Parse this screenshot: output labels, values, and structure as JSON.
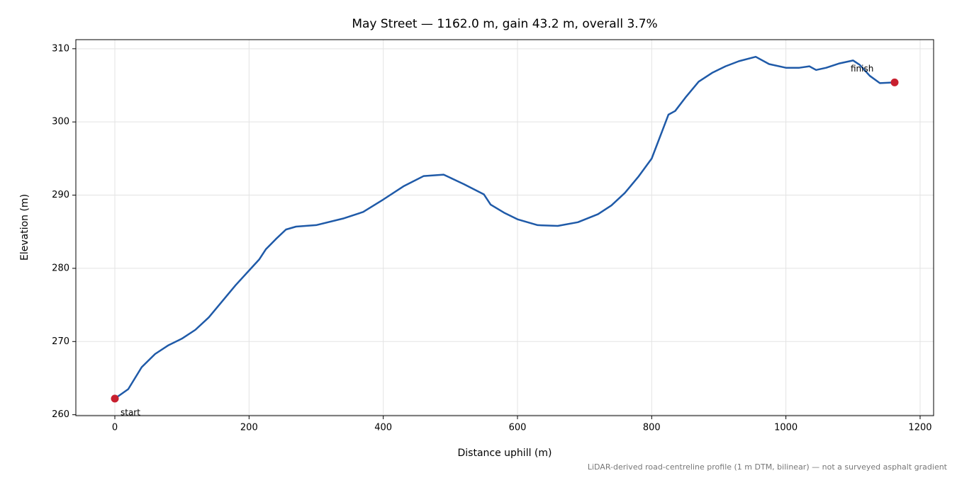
{
  "chart_data": {
    "type": "line",
    "title": "May Street — 1162.0 m, gain 43.2 m, overall 3.7%",
    "xlabel": "Distance uphill (m)",
    "ylabel": "Elevation (m)",
    "note": "LiDAR-derived road-centreline profile (1 m DTM, bilinear) — not a surveyed asphalt gradient",
    "x": [
      0,
      20,
      40,
      60,
      80,
      100,
      120,
      140,
      160,
      180,
      200,
      215,
      225,
      240,
      255,
      270,
      300,
      340,
      370,
      400,
      430,
      460,
      490,
      520,
      550,
      560,
      580,
      600,
      630,
      660,
      690,
      720,
      740,
      760,
      780,
      800,
      815,
      825,
      835,
      850,
      870,
      890,
      910,
      930,
      955,
      975,
      1000,
      1020,
      1035,
      1045,
      1060,
      1080,
      1100,
      1110,
      1125,
      1140,
      1162
    ],
    "series": [
      {
        "name": "Elevation",
        "color": "#1f5aa8",
        "values": [
          262.2,
          263.5,
          266.5,
          268.3,
          269.5,
          270.4,
          271.6,
          273.3,
          275.5,
          277.7,
          279.7,
          281.2,
          282.6,
          284.0,
          285.3,
          285.7,
          285.9,
          286.8,
          287.7,
          289.4,
          291.2,
          292.6,
          292.8,
          291.5,
          290.1,
          288.7,
          287.6,
          286.7,
          285.9,
          285.8,
          286.3,
          287.4,
          288.6,
          290.3,
          292.5,
          295.0,
          298.6,
          301.0,
          301.5,
          303.3,
          305.5,
          306.7,
          307.6,
          308.3,
          308.9,
          307.9,
          307.4,
          307.4,
          307.6,
          307.1,
          307.4,
          308.0,
          308.4,
          307.8,
          306.3,
          305.3,
          305.4
        ]
      }
    ],
    "markers": [
      {
        "label": "start",
        "x": 0,
        "y": 262.2
      },
      {
        "label": "finish",
        "x": 1162,
        "y": 305.4
      }
    ],
    "marker_color": "#c8202f",
    "xlim": [
      -58.1,
      1220.1
    ],
    "ylim": [
      259.87,
      311.24
    ],
    "xticks": [
      0,
      200,
      400,
      600,
      800,
      1000,
      1200
    ],
    "yticks": [
      260,
      270,
      280,
      290,
      300,
      310
    ],
    "grid": true
  }
}
